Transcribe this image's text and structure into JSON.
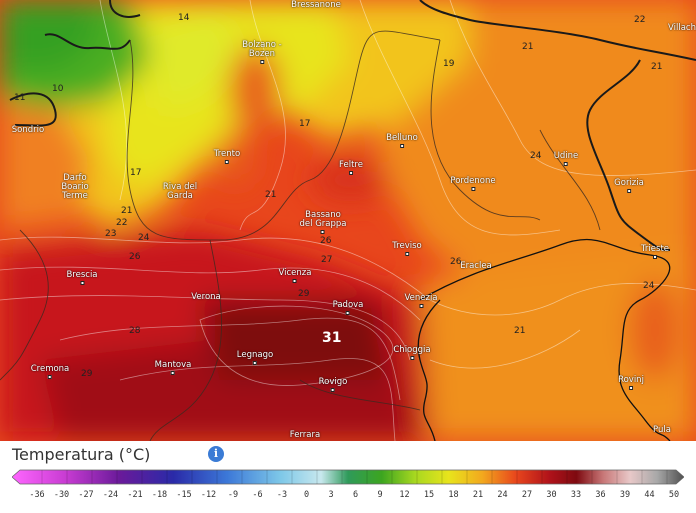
{
  "legend": {
    "title": "Temperatura (°C)",
    "info_icon": "info-icon",
    "ticks": [
      "-36",
      "-30",
      "-27",
      "-24",
      "-21",
      "-18",
      "-15",
      "-12",
      "-9",
      "-6",
      "-3",
      "0",
      "3",
      "6",
      "9",
      "12",
      "15",
      "18",
      "21",
      "24",
      "27",
      "30",
      "33",
      "36",
      "39",
      "44",
      "50"
    ]
  },
  "colors": {
    "hot_core": "#8b0a10",
    "hot": "#c1121a",
    "warm": "#e8441c",
    "orange": "#f28a1e",
    "yellow": "#e8e41c",
    "green": "#3ca520",
    "legend_accent": "#3a7bd5"
  },
  "cities": [
    {
      "name": "Bressanone"
    },
    {
      "name": "Bolzano -\nBozen"
    },
    {
      "name": "Villach"
    },
    {
      "name": "Sondrio"
    },
    {
      "name": "Trento"
    },
    {
      "name": "Belluno"
    },
    {
      "name": "Udine"
    },
    {
      "name": "Darfo\nBoario\nTerme"
    },
    {
      "name": "Riva del\nGarda"
    },
    {
      "name": "Feltre"
    },
    {
      "name": "Pordenone"
    },
    {
      "name": "Gorizia"
    },
    {
      "name": "Bassano\ndel Grappa"
    },
    {
      "name": "Treviso"
    },
    {
      "name": "Trieste"
    },
    {
      "name": "Brescia"
    },
    {
      "name": "Vicenza"
    },
    {
      "name": "Eraclea"
    },
    {
      "name": "Verona"
    },
    {
      "name": "Padova"
    },
    {
      "name": "Venezia"
    },
    {
      "name": "Legnago"
    },
    {
      "name": "Chioggia"
    },
    {
      "name": "Cremona"
    },
    {
      "name": "Mantova"
    },
    {
      "name": "Rovigo"
    },
    {
      "name": "Rovinj"
    },
    {
      "name": "Ferrara"
    },
    {
      "name": "Pula"
    }
  ],
  "isolines": [
    "14",
    "11",
    "10",
    "17",
    "19",
    "21",
    "22",
    "21",
    "17",
    "21",
    "24",
    "21",
    "22",
    "23",
    "24",
    "26",
    "26",
    "27",
    "29",
    "28",
    "29",
    "31",
    "21",
    "26",
    "24"
  ]
}
